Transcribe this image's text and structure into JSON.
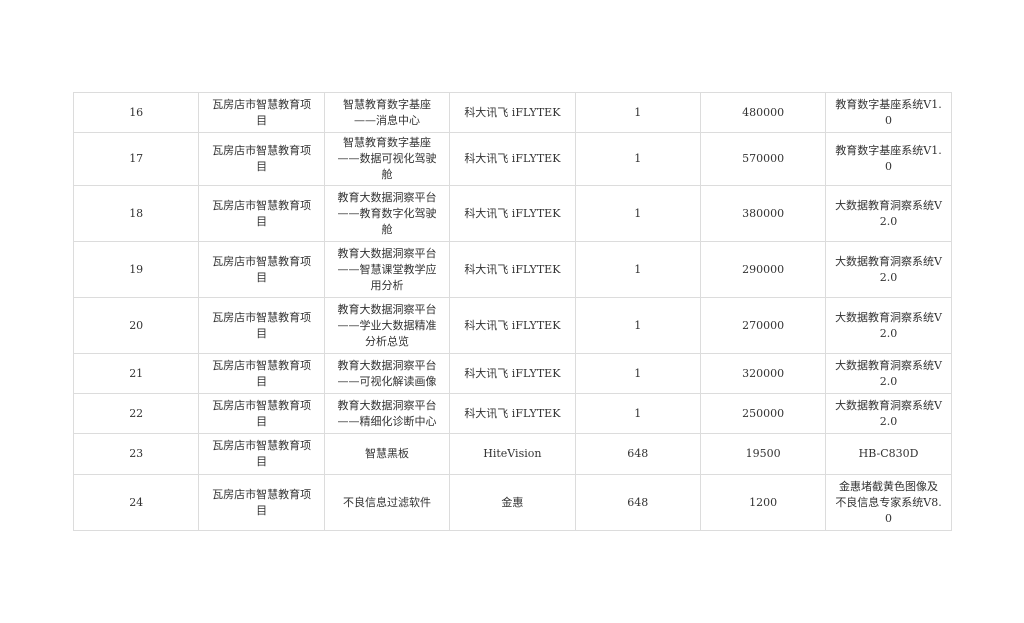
{
  "rows": [
    [
      "16",
      "瓦房店市智慧教育项目",
      "智慧教育数字基座——消息中心",
      "科大讯飞 iFLYTEK",
      "1",
      "480000",
      "教育数字基座系统V1.0"
    ],
    [
      "17",
      "瓦房店市智慧教育项目",
      "智慧教育数字基座——数据可视化驾驶舱",
      "科大讯飞 iFLYTEK",
      "1",
      "570000",
      "教育数字基座系统V1.0"
    ],
    [
      "18",
      "瓦房店市智慧教育项目",
      "教育大数据洞察平台——教育数字化驾驶舱",
      "科大讯飞 iFLYTEK",
      "1",
      "380000",
      "大数据教育洞察系统V2.0"
    ],
    [
      "19",
      "瓦房店市智慧教育项目",
      "教育大数据洞察平台——智慧课堂教学应用分析",
      "科大讯飞 iFLYTEK",
      "1",
      "290000",
      "大数据教育洞察系统V2.0"
    ],
    [
      "20",
      "瓦房店市智慧教育项目",
      "教育大数据洞察平台——学业大数据精准分析总览",
      "科大讯飞 iFLYTEK",
      "1",
      "270000",
      "大数据教育洞察系统V2.0"
    ],
    [
      "21",
      "瓦房店市智慧教育项目",
      "教育大数据洞察平台——可视化解读画像",
      "科大讯飞 iFLYTEK",
      "1",
      "320000",
      "大数据教育洞察系统V2.0"
    ],
    [
      "22",
      "瓦房店市智慧教育项目",
      "教育大数据洞察平台——精细化诊断中心",
      "科大讯飞 iFLYTEK",
      "1",
      "250000",
      "大数据教育洞察系统V2.0"
    ],
    [
      "23",
      "瓦房店市智慧教育项目",
      "智慧黑板",
      "HiteVision",
      "648",
      "19500",
      "HB-C830D"
    ],
    [
      "24",
      "瓦房店市智慧教育项目",
      "不良信息过滤软件",
      "金惠",
      "648",
      "1200",
      "金惠堵截黄色图像及不良信息专家系统V8.0"
    ]
  ]
}
